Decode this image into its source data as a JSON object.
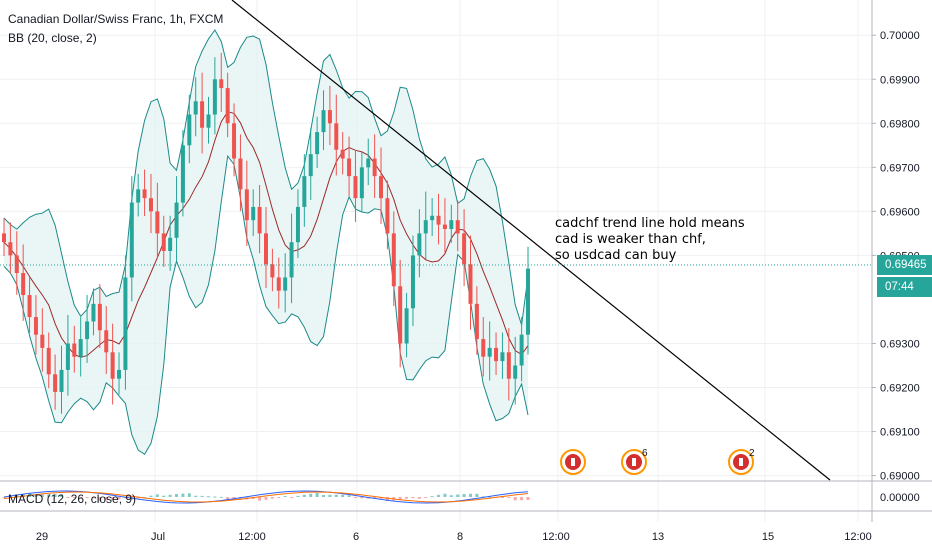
{
  "header": {
    "title": "Canadian Dollar/Swiss Franc, 1h, FXCM",
    "indicator": "BB (20, close, 2)"
  },
  "annotation": [
    "cadchf trend line hold means",
    "cad is weaker than chf,",
    "so usdcad can buy"
  ],
  "price_labels": {
    "last": "0.69465",
    "countdown": "07:44",
    "macd_zero": "0.00000"
  },
  "macd_label": "MACD (12, 26, close, 9)",
  "events": [
    {
      "icon": "canada-flag-icon",
      "badge": ""
    },
    {
      "icon": "canada-flag-icon",
      "badge": "6"
    },
    {
      "icon": "swiss-flag-icon",
      "badge": "2"
    }
  ],
  "colors": {
    "up": "#26a69a",
    "down": "#ef5350",
    "band": "#1b8a88",
    "basis": "#9c2a2a",
    "fill": "#e3f4f3",
    "trendline": "#000000",
    "macd": "#2962ff",
    "signal": "#ff6d00"
  },
  "chart_data": {
    "type": "candlestick",
    "title": "Canadian Dollar/Swiss Franc, 1h, FXCM",
    "y_ticks": [
      "0.70000",
      "0.69900",
      "0.69800",
      "0.69700",
      "0.69600",
      "0.69500",
      "0.69300",
      "0.69200",
      "0.69100",
      "0.69000"
    ],
    "ylim": [
      0.6899,
      0.7008
    ],
    "x_ticks": [
      "29",
      "Jul",
      "12:00",
      "6",
      "8",
      "12:00",
      "13",
      "15",
      "12:00"
    ],
    "last_price": 0.69465,
    "series": [
      {
        "name": "BB (20, close, 2)",
        "values": "Bollinger upper/basis/lower bands"
      }
    ],
    "closes": [
      0.6953,
      0.695,
      0.6946,
      0.6941,
      0.6936,
      0.6932,
      0.6929,
      0.6923,
      0.6919,
      0.6924,
      0.693,
      0.6927,
      0.6931,
      0.6935,
      0.6939,
      0.6933,
      0.6928,
      0.6922,
      0.6924,
      0.6945,
      0.6962,
      0.6965,
      0.6963,
      0.696,
      0.6955,
      0.6951,
      0.6954,
      0.6962,
      0.6975,
      0.6982,
      0.6985,
      0.6979,
      0.6982,
      0.699,
      0.6988,
      0.698,
      0.6972,
      0.6965,
      0.6958,
      0.6961,
      0.6955,
      0.6948,
      0.6945,
      0.6942,
      0.6945,
      0.6953,
      0.6961,
      0.6968,
      0.6973,
      0.6978,
      0.6983,
      0.698,
      0.6974,
      0.6972,
      0.6968,
      0.6963,
      0.697,
      0.6972,
      0.6968,
      0.6963,
      0.6955,
      0.6943,
      0.693,
      0.6938,
      0.695,
      0.6955,
      0.6958,
      0.6959,
      0.6957,
      0.6956,
      0.6958,
      0.6955,
      0.6948,
      0.6939,
      0.6931,
      0.6927,
      0.6929,
      0.6926,
      0.6928,
      0.6922,
      0.6925,
      0.6932,
      0.6947
    ],
    "trendline": {
      "from_price": 0.7008,
      "to_price": 0.6899
    }
  }
}
